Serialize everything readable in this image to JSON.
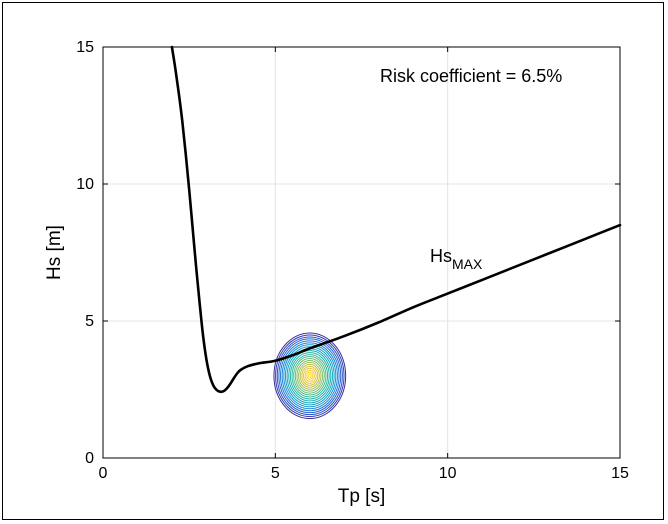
{
  "chart_data": {
    "type": "line",
    "title": "",
    "xlabel": "Tp [s]",
    "ylabel": "Hs [m]",
    "xlim": [
      0,
      15
    ],
    "ylim": [
      0,
      15
    ],
    "xticks": [
      0,
      5,
      10,
      15
    ],
    "yticks": [
      0,
      5,
      10,
      15
    ],
    "grid": true,
    "annotations": {
      "risk": "Risk coefficient = 6.5%",
      "curve_label_main": "Hs",
      "curve_label_sub": "MAX"
    },
    "series": [
      {
        "color": "#000000",
        "x": [
          2.0,
          2.1,
          2.2,
          2.3,
          2.4,
          2.5,
          2.6,
          2.7,
          2.8,
          2.9,
          3.0,
          3.1,
          3.2,
          3.3,
          3.4,
          3.5,
          3.6,
          3.7,
          3.8,
          3.9,
          4.0,
          4.2,
          4.5,
          5.0,
          5.5,
          6.0,
          7.0,
          8.0,
          9.0,
          10.0,
          11.0,
          12.0,
          13.0,
          14.0,
          15.0
        ],
        "y": [
          15.0,
          14.2,
          13.3,
          12.3,
          11.1,
          9.8,
          8.4,
          7.0,
          5.7,
          4.5,
          3.6,
          3.0,
          2.65,
          2.48,
          2.42,
          2.44,
          2.55,
          2.72,
          2.92,
          3.1,
          3.22,
          3.35,
          3.45,
          3.55,
          3.75,
          4.0,
          4.45,
          4.95,
          5.5,
          6.0,
          6.5,
          7.0,
          7.5,
          8.0,
          8.5
        ]
      }
    ],
    "density": {
      "center": [
        6.0,
        3.0
      ],
      "sigma": [
        0.5,
        0.75
      ],
      "levels": 22,
      "colormap": [
        "#3a2c9c",
        "#2a5fd4",
        "#1a8ad8",
        "#10a8c4",
        "#25b7a2",
        "#6cbf7a",
        "#b5c04a",
        "#f2c33a",
        "#fbde24"
      ]
    }
  }
}
